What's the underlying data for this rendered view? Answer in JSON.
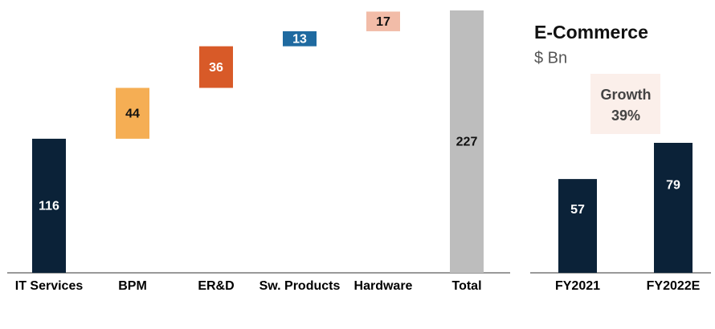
{
  "chart_data": [
    {
      "type": "waterfall",
      "categories": [
        "IT Services",
        "BPM",
        "ER&D",
        "Sw. Products",
        "Hardware",
        "Total"
      ],
      "values": [
        116,
        44,
        36,
        13,
        17,
        227
      ],
      "colors": [
        "#0b2238",
        "#f5ae54",
        "#d85a28",
        "#1f6aa0",
        "#f2bca8",
        "#bdbdbd"
      ]
    },
    {
      "type": "bar",
      "title": "E-Commerce",
      "subtitle": "$ Bn",
      "annotation": [
        "Growth",
        "39%"
      ],
      "categories": [
        "FY2021",
        "FY2022E"
      ],
      "values": [
        57,
        79
      ],
      "color": "#0b2238"
    }
  ]
}
